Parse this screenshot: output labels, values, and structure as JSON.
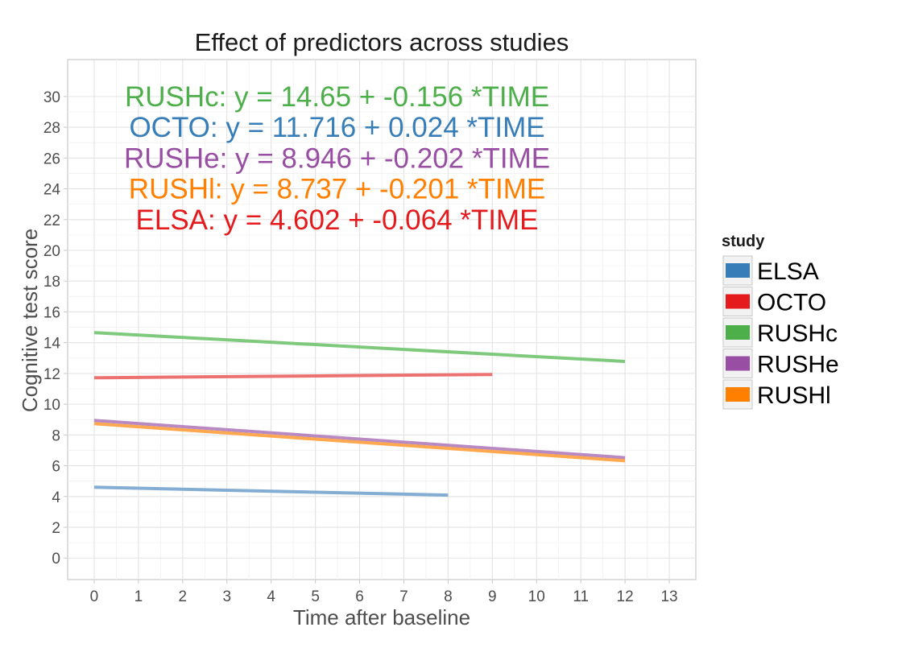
{
  "chart_data": {
    "type": "line",
    "title": "Effect of predictors across studies",
    "xlabel": "Time after baseline",
    "ylabel": "Cognitive test score",
    "xlim": [
      -0.6,
      13.6
    ],
    "ylim": [
      -1.4,
      32.4
    ],
    "x_ticks": [
      0,
      1,
      2,
      3,
      4,
      5,
      6,
      7,
      8,
      9,
      10,
      11,
      12,
      13
    ],
    "y_ticks": [
      0,
      2,
      4,
      6,
      8,
      10,
      12,
      14,
      16,
      18,
      20,
      22,
      24,
      26,
      28,
      30
    ],
    "grid": true,
    "legend": {
      "title": "study",
      "position": "right",
      "entries": [
        {
          "label": "ELSA",
          "color": "#377EB8"
        },
        {
          "label": "OCTO",
          "color": "#E41A1C"
        },
        {
          "label": "RUSHc",
          "color": "#4DAF4A"
        },
        {
          "label": "RUSHe",
          "color": "#984EA3"
        },
        {
          "label": "RUSHl",
          "color": "#FF7F00"
        }
      ]
    },
    "series": [
      {
        "name": "RUSHc",
        "color": "#7fc97d",
        "x": [
          0,
          12
        ],
        "y": [
          14.65,
          12.778
        ]
      },
      {
        "name": "OCTO",
        "color": "#ec7272",
        "x": [
          0,
          9
        ],
        "y": [
          11.716,
          11.932
        ]
      },
      {
        "name": "RUSHe",
        "color": "#b889c2",
        "x": [
          0,
          12
        ],
        "y": [
          8.946,
          6.522
        ]
      },
      {
        "name": "RUSHl",
        "color": "#ffa84f",
        "x": [
          0,
          12
        ],
        "y": [
          8.737,
          6.325
        ]
      },
      {
        "name": "ELSA",
        "color": "#84add3",
        "x": [
          0,
          8
        ],
        "y": [
          4.602,
          4.09
        ]
      }
    ],
    "annotations": [
      {
        "text": "RUSHc: y =  14.65  +  -0.156 *TIME",
        "color": "#4DAF4A",
        "x": 6,
        "y": 30
      },
      {
        "text": "OCTO: y =  11.716  +  0.024 *TIME",
        "color": "#377EB8",
        "x": 6,
        "y": 28
      },
      {
        "text": "RUSHe: y =  8.946  +  -0.202 *TIME",
        "color": "#984EA3",
        "x": 6,
        "y": 26
      },
      {
        "text": "RUSHl: y =  8.737  +  -0.201 *TIME",
        "color": "#FF7F00",
        "x": 6,
        "y": 24
      },
      {
        "text": "ELSA: y =  4.602  +  -0.064 *TIME",
        "color": "#E41A1C",
        "x": 6,
        "y": 22
      }
    ]
  }
}
